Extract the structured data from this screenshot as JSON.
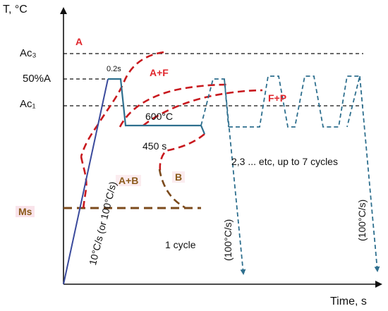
{
  "axes": {
    "y_label": "T, °C",
    "x_label": "Time, s"
  },
  "temperature_levels": {
    "ac3": "Ac₃",
    "half_austenite": "50%A",
    "ac1": "Ac₁",
    "ms": "Ms"
  },
  "phase_regions": {
    "austenite": "A",
    "austenite_ferrite": "A+F",
    "ferrite_pearlite": "F+P",
    "austenite_bainite": "A+B",
    "bainite": "B"
  },
  "annotations": {
    "hold_time": "0.2s",
    "isothermal_temp": "600°C",
    "isothermal_time": "450 s",
    "heating_rate": "10°C/s (or 100°C/s)",
    "cooling_rate_first": "(100°C/s)",
    "cooling_rate_last": "(100°C/s)",
    "single_cycle": "1 cycle",
    "multi_cycle": "2,3 ... etc, up to 7 cycles"
  },
  "colors": {
    "profile": "#2e6f8e",
    "heating_line": "#3a4a9c",
    "phase_boundary": "#c8191e",
    "phase_text": "#e0262c",
    "bainite_boundary": "#7b4a1c",
    "bainite_text": "#8a5a1a",
    "level_line": "#111111",
    "highlight": "#f9e3ea"
  }
}
